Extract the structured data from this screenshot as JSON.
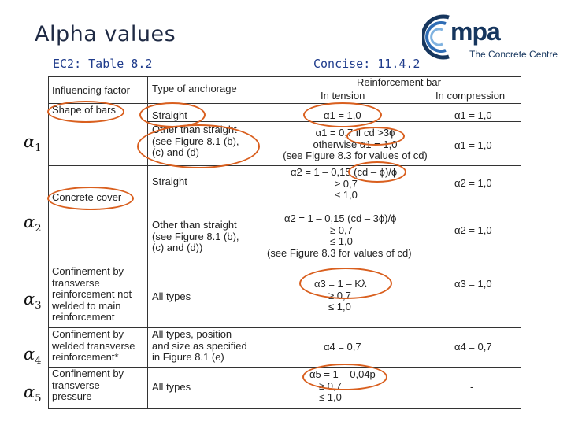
{
  "slide": {
    "title": "Alpha values",
    "left_subtitle": "EC2: Table 8.2",
    "right_subtitle": "Concise: 11.4.2"
  },
  "logo": {
    "name": "mpa",
    "tagline": "The Concrete Centre"
  },
  "alpha_labels": [
    {
      "symbol": "α",
      "sub": "1"
    },
    {
      "symbol": "α",
      "sub": "2"
    },
    {
      "symbol": "α",
      "sub": "3"
    },
    {
      "symbol": "α",
      "sub": "4"
    },
    {
      "symbol": "α",
      "sub": "5"
    }
  ],
  "table": {
    "headers": {
      "factor": "Influencing factor",
      "anchorage": "Type of anchorage",
      "reinforcement": "Reinforcement bar",
      "tension": "In tension",
      "compression": "In compression"
    },
    "rows": {
      "shape": {
        "factor": "Shape of bars",
        "straight": {
          "anchorage": "Straight",
          "tension": "α1 = 1,0",
          "compression": "α1 = 1,0"
        },
        "other": {
          "anchorage": [
            "Other than straight",
            "(see Figure 8.1 (b),",
            "(c) and (d)"
          ],
          "tension": [
            "α1 = 0,7 if cd >3ϕ",
            "otherwise α1 = 1,0",
            "(see Figure 8.3 for values of cd)"
          ],
          "compression": "α1 = 1,0"
        }
      },
      "cover": {
        "factor": "Concrete cover",
        "straight": {
          "anchorage": "Straight",
          "tension": [
            "α2 = 1 – 0,15 (cd – ϕ)/ϕ",
            "≥ 0,7",
            "≤ 1,0"
          ],
          "compression": "α2 = 1,0"
        },
        "other": {
          "anchorage": [
            "Other than straight",
            "(see Figure 8.1 (b),",
            "(c) and (d))"
          ],
          "tension": [
            "α2 = 1 – 0,15 (cd – 3ϕ)/ϕ",
            "≥ 0,7",
            "≤ 1,0",
            "(see Figure 8.3 for values of cd)"
          ],
          "compression": "α2 = 1,0"
        }
      },
      "confinement_not_welded": {
        "factor": [
          "Confinement by",
          "transverse",
          "reinforcement not",
          "welded to main",
          "reinforcement"
        ],
        "anchorage": "All types",
        "tension": [
          "α3 = 1 – Kλ",
          "≥ 0,7",
          "≤ 1,0"
        ],
        "compression": "α3 = 1,0"
      },
      "confinement_welded": {
        "factor": [
          "Confinement by",
          "welded transverse",
          "reinforcement*"
        ],
        "anchorage": [
          "All types, position",
          "and size as specified",
          "in Figure 8.1 (e)"
        ],
        "tension": "α4 = 0,7",
        "compression": "α4 = 0,7"
      },
      "pressure": {
        "factor": [
          "Confinement by",
          "transverse",
          "pressure"
        ],
        "anchorage": "All types",
        "tension": [
          "α5 = 1 – 0,04p",
          "≥ 0,7",
          "≤ 1,0"
        ],
        "compression": "-"
      }
    }
  },
  "colors": {
    "title": "#1f2a44",
    "subtitle": "#1f3c8c",
    "highlight": "#d95f1e",
    "logo": "#16365e"
  }
}
